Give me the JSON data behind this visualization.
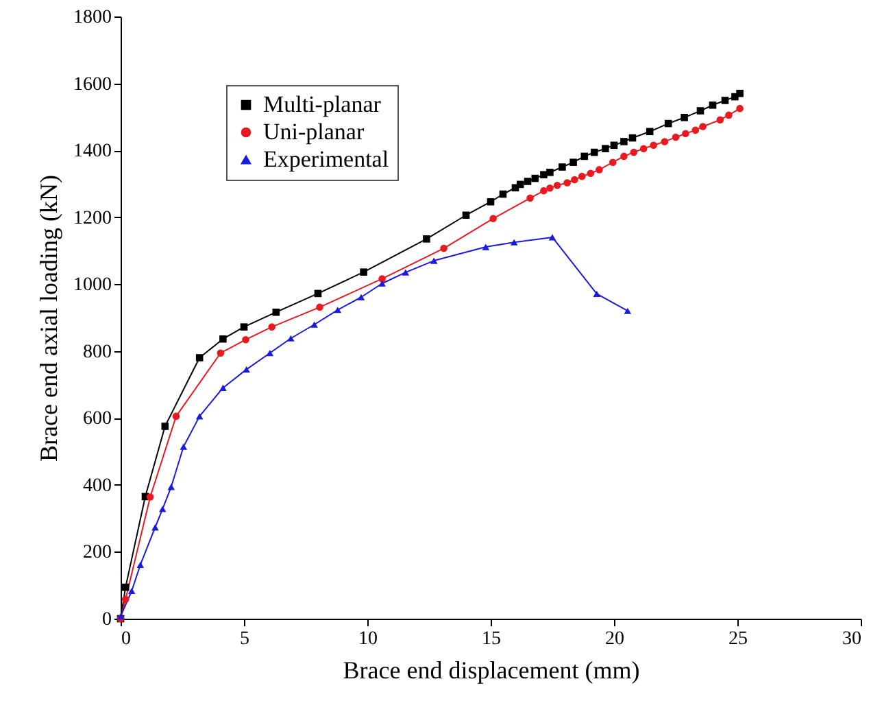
{
  "chart_data": {
    "type": "line",
    "xlabel": "Brace end displacement (mm)",
    "ylabel": "Brace end axial loading (kN)",
    "xlim": [
      0,
      30
    ],
    "xticks": [
      0,
      5,
      10,
      15,
      20,
      25,
      30
    ],
    "ylim": [
      0,
      1800
    ],
    "yticks": [
      0,
      200,
      400,
      600,
      800,
      1000,
      1200,
      1400,
      1600,
      1800
    ],
    "grid": false,
    "legend": "top left",
    "series": [
      {
        "name": "Multi-planar",
        "color": "#000000",
        "marker": "square",
        "x": [
          0,
          0.2,
          1.0,
          1.8,
          3.2,
          4.15,
          5.0,
          6.3,
          8.0,
          9.85,
          12.4,
          14.0,
          15.0,
          15.5,
          16.0,
          16.2,
          16.5,
          16.8,
          17.15,
          17.4,
          17.9,
          18.35,
          18.8,
          19.2,
          19.65,
          20.0,
          20.4,
          20.75,
          21.45,
          22.2,
          22.85,
          23.5,
          24.0,
          24.5,
          24.9,
          25.1
        ],
        "values": [
          0,
          94,
          365,
          575,
          780,
          836,
          872,
          916,
          972,
          1036,
          1135,
          1206,
          1246,
          1269,
          1288,
          1298,
          1307,
          1316,
          1327,
          1334,
          1350,
          1364,
          1382,
          1394,
          1405,
          1415,
          1426,
          1437,
          1456,
          1480,
          1498,
          1518,
          1535,
          1549,
          1560,
          1570
        ]
      },
      {
        "name": "Uni-planar",
        "color": "#e8191f",
        "marker": "circle",
        "x": [
          0,
          0.2,
          1.2,
          2.25,
          4.05,
          5.07,
          6.13,
          8.07,
          10.6,
          13.1,
          15.1,
          16.6,
          17.15,
          17.4,
          17.7,
          18.1,
          18.4,
          18.7,
          19.05,
          19.4,
          19.95,
          20.4,
          20.8,
          21.2,
          21.6,
          22.05,
          22.5,
          22.9,
          23.3,
          23.6,
          24.3,
          24.65,
          25.1
        ],
        "values": [
          0,
          58,
          364,
          605,
          794,
          834,
          872,
          931,
          1016,
          1107,
          1196,
          1257,
          1279,
          1287,
          1295,
          1303,
          1312,
          1322,
          1331,
          1342,
          1364,
          1382,
          1394,
          1405,
          1415,
          1426,
          1439,
          1450,
          1460,
          1471,
          1491,
          1505,
          1525
        ]
      },
      {
        "name": "Experimental",
        "color": "#1a1adf",
        "marker": "triangle",
        "x": [
          0,
          0.45,
          0.8,
          1.4,
          1.7,
          2.05,
          2.55,
          3.2,
          4.15,
          5.1,
          6.05,
          6.9,
          7.85,
          8.8,
          9.75,
          10.6,
          11.55,
          12.7,
          14.8,
          15.95,
          17.5,
          19.3,
          20.55
        ],
        "values": [
          7,
          83,
          161,
          273,
          328,
          394,
          514,
          605,
          690,
          745,
          794,
          838,
          879,
          923,
          961,
          1002,
          1035,
          1070,
          1111,
          1125,
          1140,
          971,
          920
        ]
      }
    ]
  }
}
